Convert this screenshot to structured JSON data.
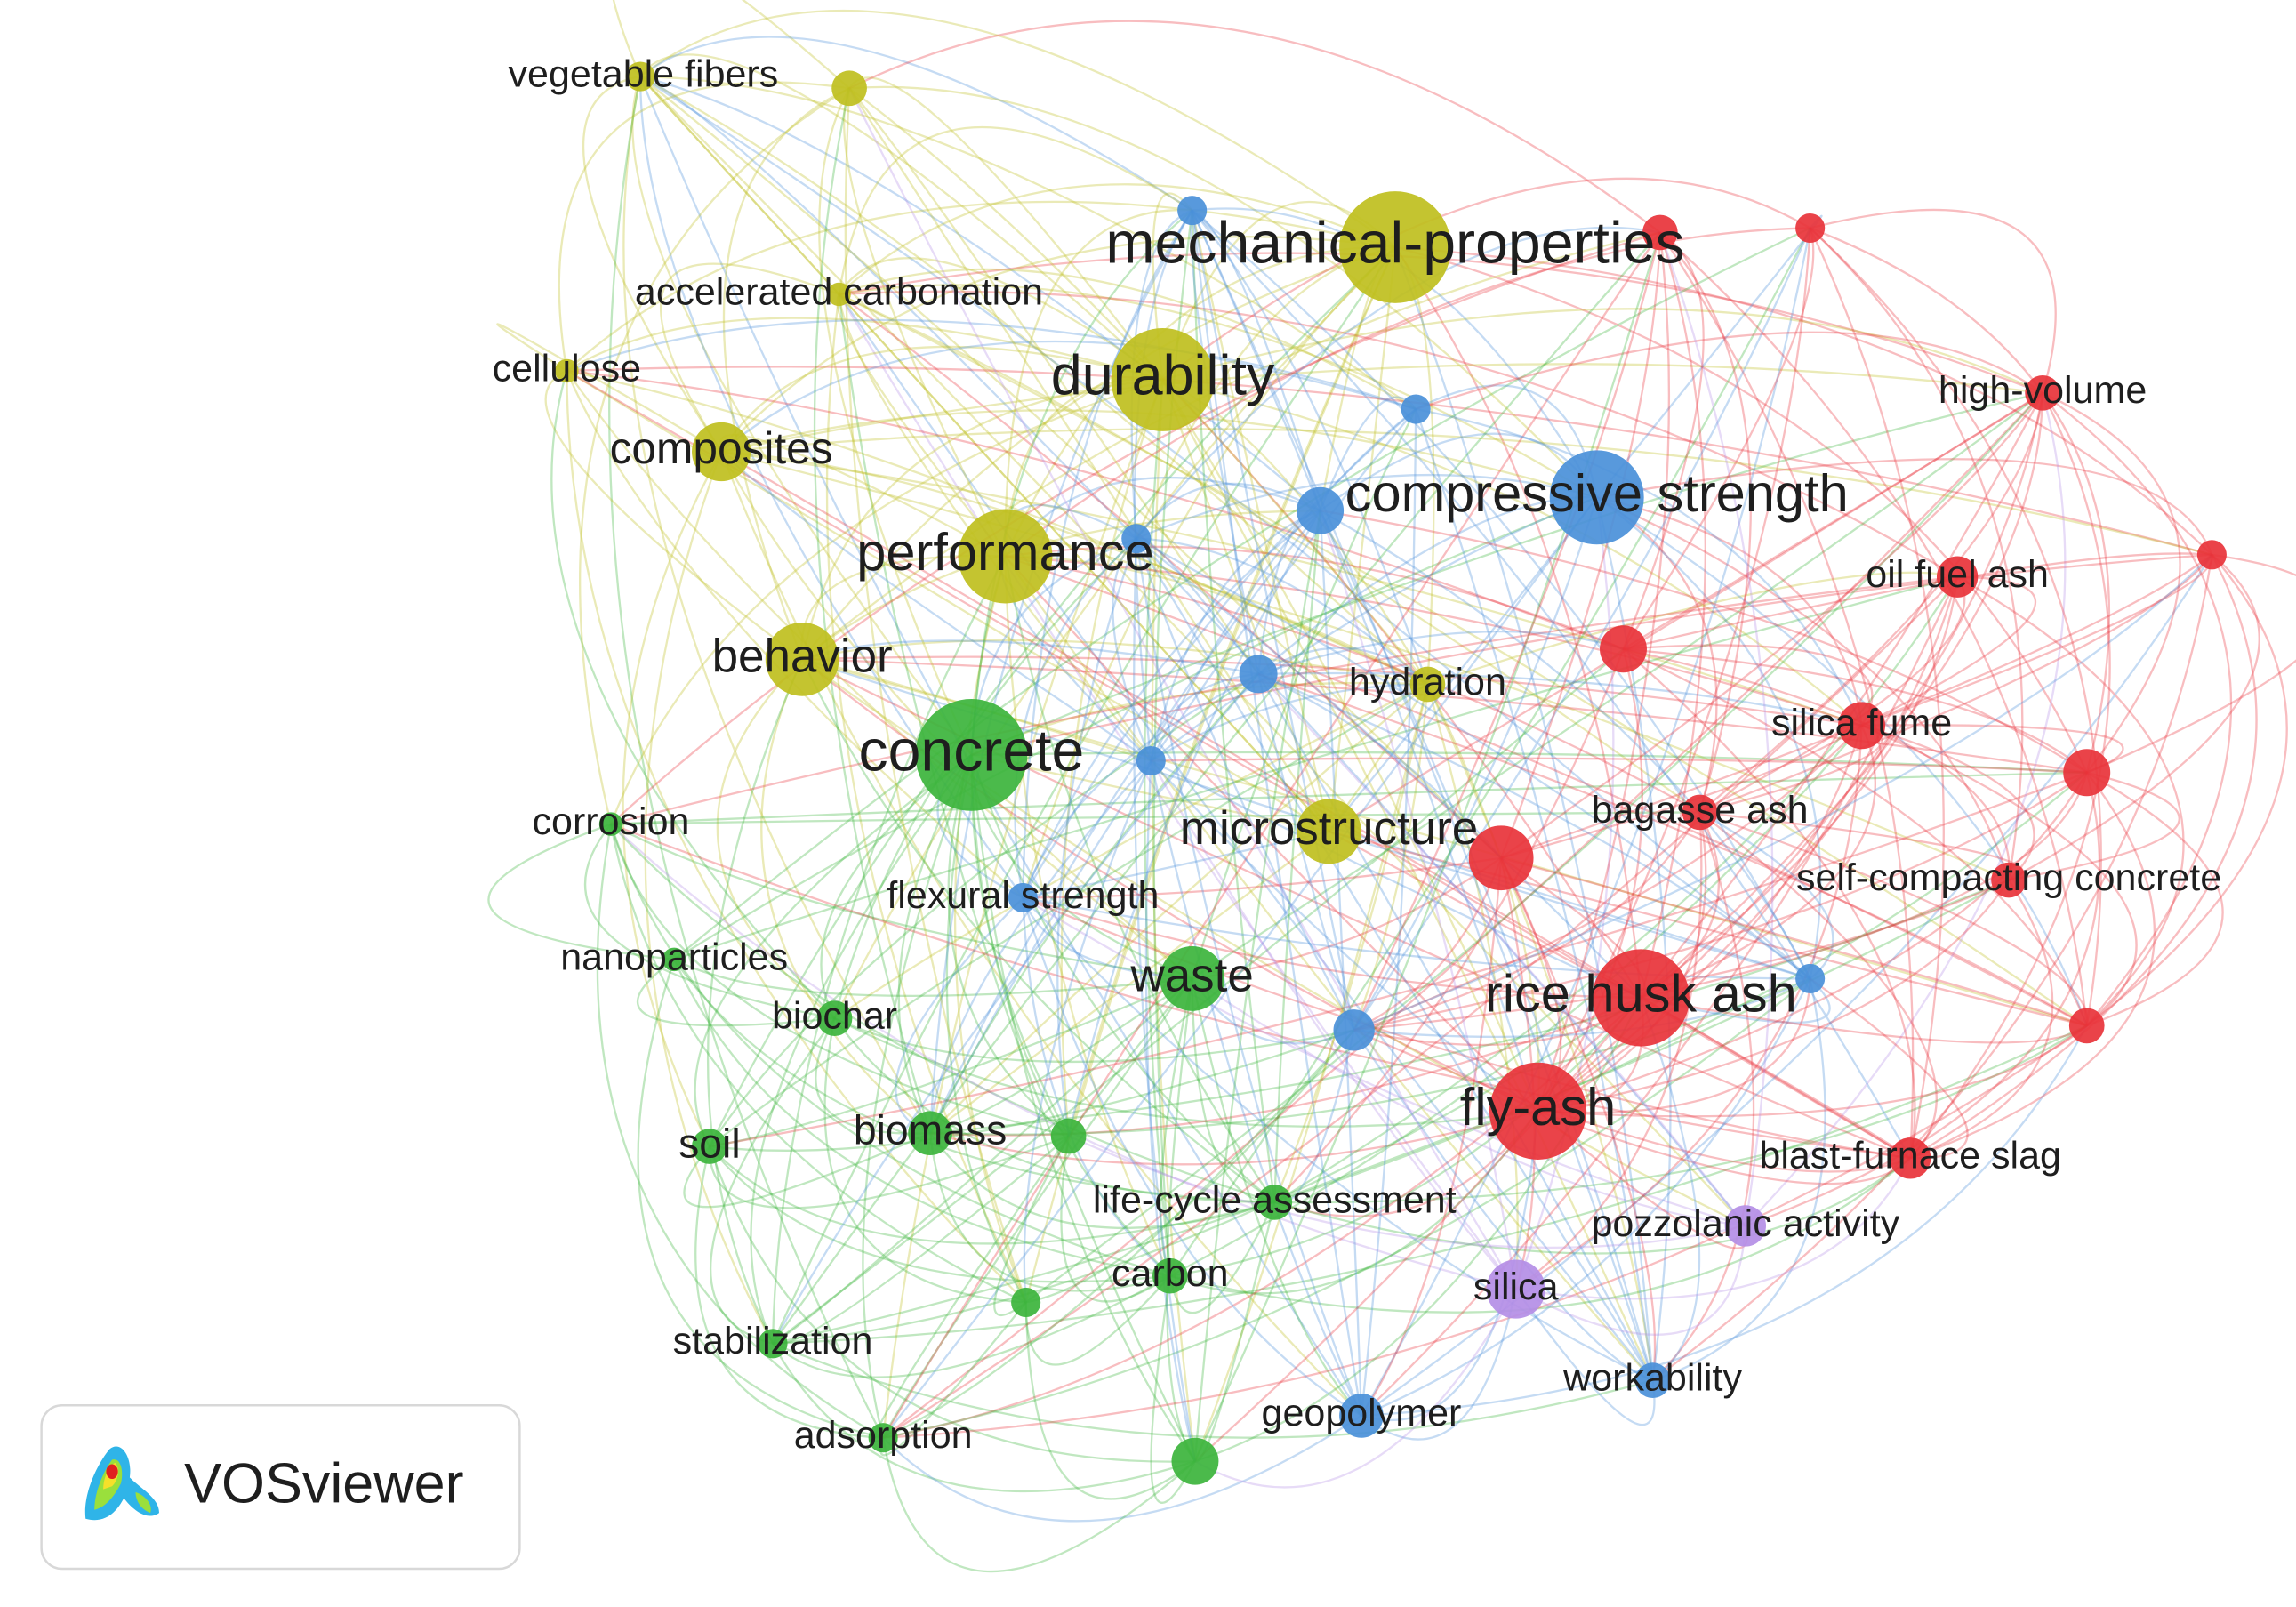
{
  "nodes": [
    {
      "label": "vegetable fibers"
    },
    {
      "label": "mechanical-properties"
    },
    {
      "label": "accelerated carbonation"
    },
    {
      "label": "cellulose"
    },
    {
      "label": "durability"
    },
    {
      "label": "composites"
    },
    {
      "label": "performance"
    },
    {
      "label": "behavior"
    },
    {
      "label": "hydration"
    },
    {
      "label": "microstructure"
    },
    {
      "label": "concrete"
    },
    {
      "label": "corrosion"
    },
    {
      "label": "nanoparticles"
    },
    {
      "label": "biochar"
    },
    {
      "label": "waste"
    },
    {
      "label": "soil"
    },
    {
      "label": "biomass"
    },
    {
      "label": "life-cycle assessment"
    },
    {
      "label": "carbon"
    },
    {
      "label": "stabilization"
    },
    {
      "label": "adsorption"
    },
    {
      "label": "compressive strength"
    },
    {
      "label": "flexural strength"
    },
    {
      "label": "geopolymer"
    },
    {
      "label": "workability"
    },
    {
      "label": "high-volume"
    },
    {
      "label": "oil fuel ash"
    },
    {
      "label": "silica fume"
    },
    {
      "label": "bagasse ash"
    },
    {
      "label": "self-compacting concrete"
    },
    {
      "label": "rice husk ash"
    },
    {
      "label": "fly-ash"
    },
    {
      "label": "blast-furnace slag"
    },
    {
      "label": "pozzolanic activity"
    },
    {
      "label": "silica"
    }
  ],
  "logo": {
    "text": "VOSviewer"
  }
}
